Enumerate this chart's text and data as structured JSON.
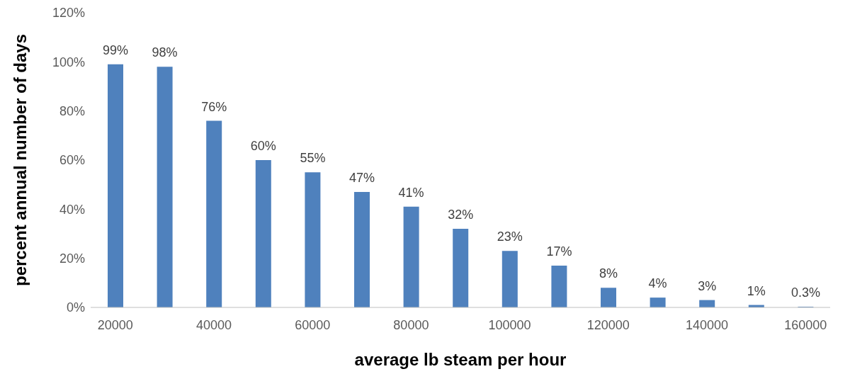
{
  "chart_data": {
    "type": "bar",
    "xlabel": "average lb steam per hour",
    "ylabel": "percent annual number of days",
    "categories": [
      "20000",
      null,
      "40000",
      null,
      "60000",
      null,
      "80000",
      null,
      "100000",
      null,
      "120000",
      null,
      "140000",
      null,
      "160000"
    ],
    "values": [
      99,
      98,
      76,
      60,
      55,
      47,
      41,
      32,
      23,
      17,
      8,
      4,
      3,
      1,
      0.3
    ],
    "value_labels": [
      "99%",
      "98%",
      "76%",
      "60%",
      "55%",
      "47%",
      "41%",
      "32%",
      "23%",
      "17%",
      "8%",
      "4%",
      "3%",
      "1%",
      "0.3%"
    ],
    "color": "#4f81bd",
    "ylim": [
      0,
      120
    ],
    "yticks": [
      {
        "value": 0,
        "label": "0%"
      },
      {
        "value": 20,
        "label": "20%"
      },
      {
        "value": 40,
        "label": "40%"
      },
      {
        "value": 60,
        "label": "60%"
      },
      {
        "value": 80,
        "label": "80%"
      },
      {
        "value": 100,
        "label": "100%"
      },
      {
        "value": 120,
        "label": "120%"
      }
    ],
    "grid": false,
    "legend": false
  }
}
